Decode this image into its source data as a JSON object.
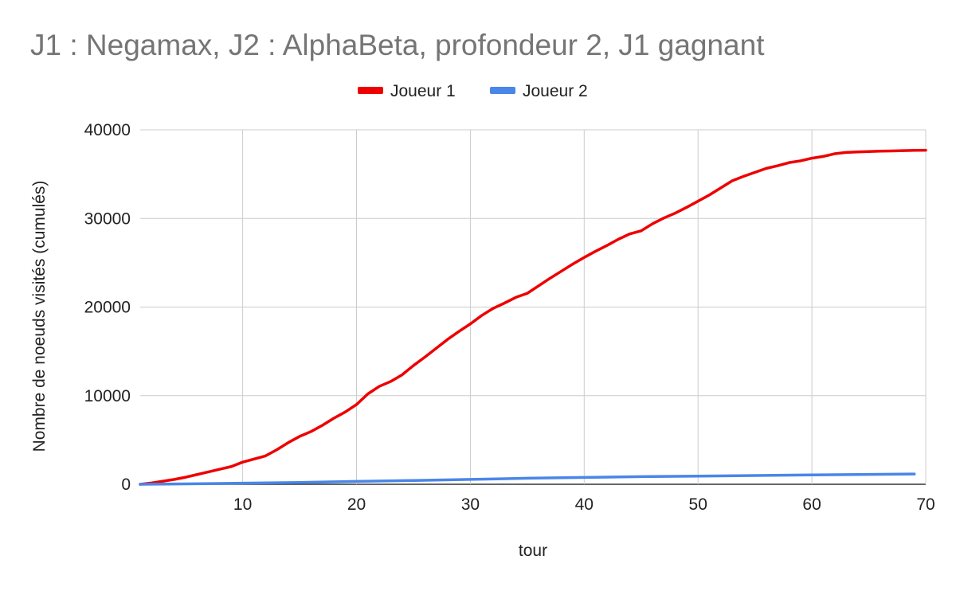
{
  "chart_data": {
    "type": "line",
    "title": "J1 : Negamax, J2 : AlphaBeta, profondeur 2, J1 gagnant",
    "xlabel": "tour",
    "ylabel": "Nombre de noeuds visités (cumulés)",
    "xlim": [
      1,
      70
    ],
    "ylim": [
      0,
      40000
    ],
    "x_ticks": [
      10,
      20,
      30,
      40,
      50,
      60,
      70
    ],
    "y_ticks": [
      0,
      10000,
      20000,
      30000,
      40000
    ],
    "grid": true,
    "legend_position": "top-center",
    "series": [
      {
        "name": "Joueur 1",
        "color": "#ee0000",
        "x": [
          1,
          2,
          3,
          4,
          5,
          6,
          7,
          8,
          9,
          10,
          11,
          12,
          13,
          14,
          15,
          16,
          17,
          18,
          19,
          20,
          21,
          22,
          23,
          24,
          25,
          26,
          27,
          28,
          29,
          30,
          31,
          32,
          33,
          34,
          35,
          36,
          37,
          38,
          39,
          40,
          41,
          42,
          43,
          44,
          45,
          46,
          47,
          48,
          49,
          50,
          51,
          52,
          53,
          54,
          55,
          56,
          57,
          58,
          59,
          60,
          61,
          62,
          63,
          64,
          65,
          66,
          67,
          68,
          69,
          70
        ],
        "y": [
          0,
          150,
          350,
          550,
          800,
          1100,
          1400,
          1700,
          2000,
          2500,
          2850,
          3200,
          3900,
          4700,
          5400,
          5950,
          6650,
          7450,
          8150,
          9000,
          10200,
          11050,
          11600,
          12350,
          13400,
          14350,
          15350,
          16350,
          17250,
          18100,
          19050,
          19850,
          20450,
          21100,
          21550,
          22400,
          23250,
          24050,
          24850,
          25600,
          26300,
          26950,
          27650,
          28250,
          28600,
          29400,
          30050,
          30600,
          31250,
          31950,
          32650,
          33450,
          34250,
          34750,
          35200,
          35650,
          35950,
          36300,
          36500,
          36800,
          37000,
          37300,
          37450,
          37500,
          37550,
          37600,
          37620,
          37650,
          37680,
          37700
        ]
      },
      {
        "name": "Joueur 2",
        "color": "#4a86e8",
        "x": [
          1,
          5,
          10,
          15,
          20,
          25,
          30,
          35,
          40,
          45,
          50,
          55,
          60,
          65,
          69
        ],
        "y": [
          0,
          50,
          120,
          200,
          330,
          430,
          550,
          680,
          780,
          860,
          920,
          990,
          1060,
          1110,
          1160
        ]
      }
    ]
  }
}
